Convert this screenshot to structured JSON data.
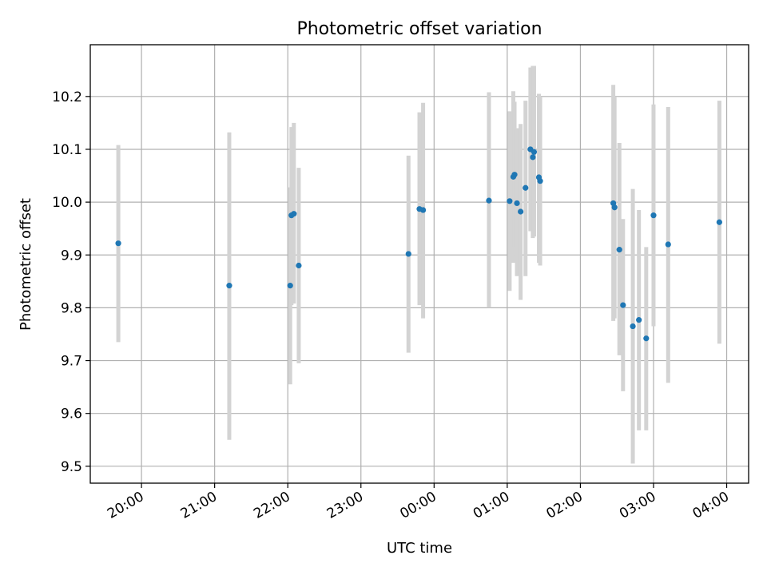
{
  "chart_data": {
    "type": "scatter",
    "title": "Photometric offset variation",
    "xlabel": "UTC time",
    "ylabel": "Photometric offset",
    "x_unit": "hours since 00:00 UTC (negative = previous day)",
    "x_range": [
      -4.7,
      4.3
    ],
    "y_range": [
      9.468,
      10.298
    ],
    "x_ticks": [
      {
        "value": -4,
        "label": "20:00"
      },
      {
        "value": -3,
        "label": "21:00"
      },
      {
        "value": -2,
        "label": "22:00"
      },
      {
        "value": -1,
        "label": "23:00"
      },
      {
        "value": 0,
        "label": "00:00"
      },
      {
        "value": 1,
        "label": "01:00"
      },
      {
        "value": 2,
        "label": "02:00"
      },
      {
        "value": 3,
        "label": "03:00"
      },
      {
        "value": 4,
        "label": "04:00"
      }
    ],
    "y_ticks": [
      {
        "value": 9.5,
        "label": "9.5"
      },
      {
        "value": 9.6,
        "label": "9.6"
      },
      {
        "value": 9.7,
        "label": "9.7"
      },
      {
        "value": 9.8,
        "label": "9.8"
      },
      {
        "value": 9.9,
        "label": "9.9"
      },
      {
        "value": 10.0,
        "label": "10.0"
      },
      {
        "value": 10.1,
        "label": "10.1"
      },
      {
        "value": 10.2,
        "label": "10.2"
      }
    ],
    "grid": true,
    "marker_color": "#1f77b4",
    "errorbar_color": "#d3d3d3",
    "points": [
      {
        "t": -4.317,
        "y": 9.922,
        "lo": 9.735,
        "hi": 10.108
      },
      {
        "t": -2.8,
        "y": 9.842,
        "lo": 9.55,
        "hi": 10.132
      },
      {
        "t": -1.967,
        "y": 9.842,
        "lo": 9.655,
        "hi": 10.028
      },
      {
        "t": -1.95,
        "y": 9.975,
        "lo": 9.805,
        "hi": 10.142
      },
      {
        "t": -1.917,
        "y": 9.978,
        "lo": 9.808,
        "hi": 10.15
      },
      {
        "t": -1.85,
        "y": 9.88,
        "lo": 9.695,
        "hi": 10.065
      },
      {
        "t": -0.35,
        "y": 9.902,
        "lo": 9.715,
        "hi": 10.088
      },
      {
        "t": -0.2,
        "y": 9.987,
        "lo": 9.805,
        "hi": 10.17
      },
      {
        "t": -0.15,
        "y": 9.985,
        "lo": 9.78,
        "hi": 10.188
      },
      {
        "t": 0.75,
        "y": 10.003,
        "lo": 9.8,
        "hi": 10.208
      },
      {
        "t": 1.033,
        "y": 10.002,
        "lo": 9.832,
        "hi": 10.172
      },
      {
        "t": 1.083,
        "y": 10.048,
        "lo": 9.885,
        "hi": 10.21
      },
      {
        "t": 1.1,
        "y": 10.052,
        "lo": 9.915,
        "hi": 10.19
      },
      {
        "t": 1.133,
        "y": 9.998,
        "lo": 9.86,
        "hi": 10.14
      },
      {
        "t": 1.183,
        "y": 9.982,
        "lo": 9.815,
        "hi": 10.148
      },
      {
        "t": 1.25,
        "y": 10.027,
        "lo": 9.86,
        "hi": 10.192
      },
      {
        "t": 1.317,
        "y": 10.1,
        "lo": 9.945,
        "hi": 10.255
      },
      {
        "t": 1.35,
        "y": 10.085,
        "lo": 9.932,
        "hi": 10.258
      },
      {
        "t": 1.367,
        "y": 10.095,
        "lo": 9.935,
        "hi": 10.258
      },
      {
        "t": 1.433,
        "y": 10.047,
        "lo": 9.885,
        "hi": 10.205
      },
      {
        "t": 1.45,
        "y": 10.04,
        "lo": 9.88,
        "hi": 10.2
      },
      {
        "t": 2.45,
        "y": 9.998,
        "lo": 9.775,
        "hi": 10.222
      },
      {
        "t": 2.467,
        "y": 9.99,
        "lo": 9.78,
        "hi": 10.2
      },
      {
        "t": 2.533,
        "y": 9.91,
        "lo": 9.71,
        "hi": 10.112
      },
      {
        "t": 2.583,
        "y": 9.805,
        "lo": 9.642,
        "hi": 9.968
      },
      {
        "t": 2.717,
        "y": 9.765,
        "lo": 9.505,
        "hi": 10.025
      },
      {
        "t": 2.8,
        "y": 9.777,
        "lo": 9.568,
        "hi": 9.985
      },
      {
        "t": 2.9,
        "y": 9.742,
        "lo": 9.568,
        "hi": 9.915
      },
      {
        "t": 3.0,
        "y": 9.975,
        "lo": 9.765,
        "hi": 10.185
      },
      {
        "t": 3.2,
        "y": 9.92,
        "lo": 9.658,
        "hi": 10.18
      },
      {
        "t": 3.9,
        "y": 9.962,
        "lo": 9.732,
        "hi": 10.192
      }
    ]
  }
}
